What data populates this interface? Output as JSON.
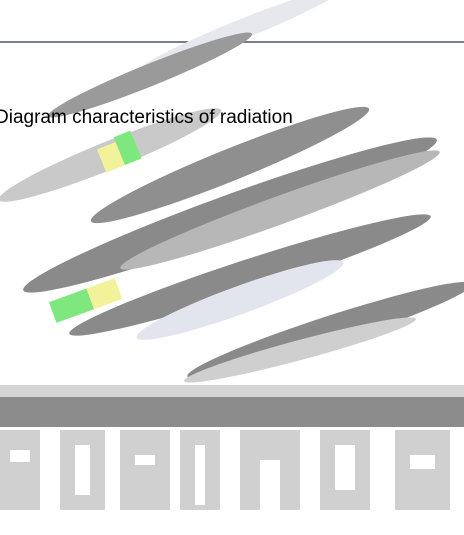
{
  "title": "Diagram characteristics of radiation"
}
